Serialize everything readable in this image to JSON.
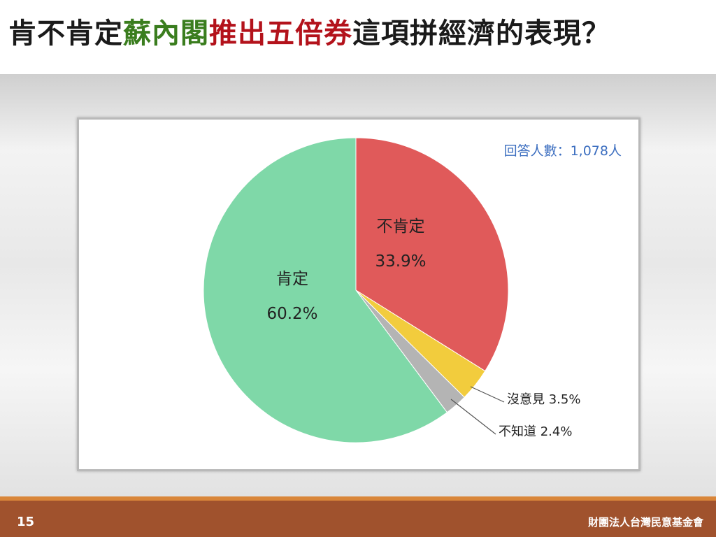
{
  "slide": {
    "title_parts": [
      {
        "text": "肯不肯定",
        "color": "#1a1a1a"
      },
      {
        "text": "蘇內閣",
        "color": "#3a7d1e"
      },
      {
        "text": "推出五倍券",
        "color": "#b3121b"
      },
      {
        "text": "這項拼經濟的表現？",
        "color": "#1a1a1a"
      }
    ],
    "respondents_label": "回答人數：1,078人",
    "respondents_color": "#3d6fc0",
    "page_number": "15",
    "organization": "財團法人台灣民意基金會",
    "footer_color": "#a0522d",
    "footer_accent_color": "#d9863a"
  },
  "chart_data": {
    "type": "pie",
    "title": "",
    "start_angle_deg": 0,
    "direction": "clockwise",
    "slices": [
      {
        "label": "不肯定",
        "value": 33.9,
        "display": "33.9%",
        "color": "#e05a5a",
        "label_position": "inside"
      },
      {
        "label": "沒意見",
        "value": 3.5,
        "display": "沒意見 3.5%",
        "color": "#f2cc3d",
        "label_position": "outside"
      },
      {
        "label": "不知道",
        "value": 2.4,
        "display": "不知道 2.4%",
        "color": "#b4b4b4",
        "label_position": "outside"
      },
      {
        "label": "肯定",
        "value": 60.2,
        "display": "60.2%",
        "color": "#7fd8a8",
        "label_position": "inside"
      }
    ]
  }
}
